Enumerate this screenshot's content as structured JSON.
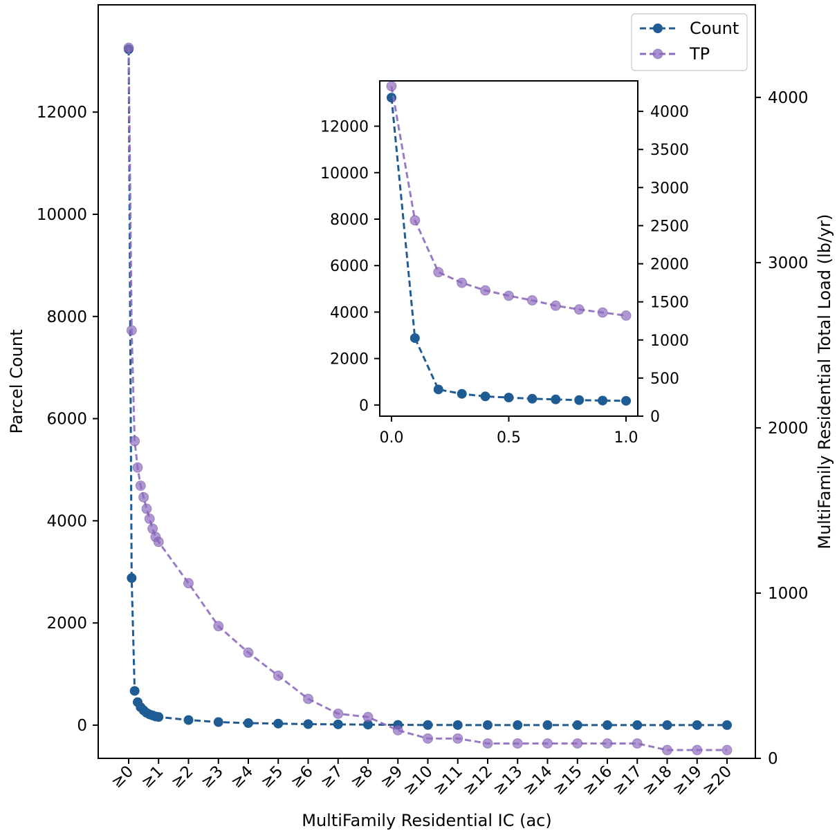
{
  "chart_data": [
    {
      "type": "line",
      "role": "main",
      "xlabel": "MultiFamily Residential IC (ac)",
      "ylabel": "Parcel Count",
      "y2label": "MultiFamily Residential Total Load (lb/yr)",
      "ylim": [
        -650,
        14100
      ],
      "y2lim": [
        0,
        4560
      ],
      "yticks": [
        0,
        2000,
        4000,
        6000,
        8000,
        10000,
        12000
      ],
      "y2ticks": [
        0,
        1000,
        2000,
        3000,
        4000
      ],
      "xtick_labels": [
        "≥0",
        "≥1",
        "≥2",
        "≥3",
        "≥4",
        "≥5",
        "≥6",
        "≥7",
        "≥8",
        "≥9",
        "≥10",
        "≥11",
        "≥12",
        "≥13",
        "≥14",
        "≥15",
        "≥16",
        "≥17",
        "≥18",
        "≥19",
        "≥20"
      ],
      "xtick_values": [
        0,
        1,
        2,
        3,
        4,
        5,
        6,
        7,
        8,
        9,
        10,
        11,
        12,
        13,
        14,
        15,
        16,
        17,
        18,
        19,
        20
      ],
      "legend": {
        "placement": "top-right",
        "entries": [
          "Count",
          "TP"
        ]
      },
      "series": [
        {
          "name": "Count",
          "axis": "left",
          "color": "#1f5c94",
          "x": [
            0,
            0.1,
            0.2,
            0.3,
            0.4,
            0.5,
            0.6,
            0.7,
            0.8,
            0.9,
            1,
            2,
            3,
            4,
            5,
            6,
            7,
            8,
            9,
            10,
            11,
            12,
            13,
            14,
            15,
            16,
            17,
            18,
            19,
            20
          ],
          "values": [
            13230,
            2880,
            670,
            450,
            350,
            290,
            240,
            210,
            190,
            170,
            160,
            100,
            60,
            40,
            30,
            20,
            15,
            10,
            5,
            3,
            2,
            2,
            1,
            1,
            1,
            1,
            1,
            1,
            1,
            1
          ]
        },
        {
          "name": "TP",
          "axis": "right",
          "color": "#8e6bbf",
          "x": [
            0,
            0.1,
            0.2,
            0.3,
            0.4,
            0.5,
            0.6,
            0.7,
            0.8,
            0.9,
            1,
            2,
            3,
            4,
            5,
            6,
            7,
            8,
            9,
            10,
            11,
            12,
            13,
            14,
            15,
            16,
            17,
            18,
            19,
            20
          ],
          "values": [
            4300,
            2590,
            1920,
            1760,
            1650,
            1580,
            1510,
            1450,
            1390,
            1340,
            1310,
            1060,
            800,
            640,
            500,
            360,
            270,
            250,
            170,
            120,
            120,
            90,
            90,
            90,
            90,
            90,
            90,
            50,
            50,
            50
          ]
        }
      ]
    },
    {
      "type": "line",
      "role": "inset",
      "xlim": [
        -0.05,
        1.05
      ],
      "ylim": [
        -480,
        13950
      ],
      "y2lim": [
        0,
        4400
      ],
      "xticks": [
        0.0,
        0.5,
        1.0
      ],
      "xtick_labels": [
        "0.0",
        "0.5",
        "1.0"
      ],
      "yticks": [
        0,
        2000,
        4000,
        6000,
        8000,
        10000,
        12000
      ],
      "y2ticks": [
        0,
        500,
        1000,
        1500,
        2000,
        2500,
        3000,
        3500,
        4000
      ],
      "series": [
        {
          "name": "Count",
          "axis": "left",
          "color": "#1f5c94",
          "x": [
            0,
            0.1,
            0.2,
            0.3,
            0.4,
            0.5,
            0.6,
            0.7,
            0.8,
            0.9,
            1.0
          ],
          "values": [
            13230,
            2880,
            670,
            480,
            370,
            320,
            270,
            240,
            210,
            190,
            180
          ]
        },
        {
          "name": "TP",
          "axis": "right",
          "color": "#8e6bbf",
          "x": [
            0,
            0.1,
            0.2,
            0.3,
            0.4,
            0.5,
            0.6,
            0.7,
            0.8,
            0.9,
            1.0
          ],
          "values": [
            4330,
            2570,
            1890,
            1750,
            1650,
            1580,
            1520,
            1450,
            1400,
            1360,
            1320
          ]
        }
      ]
    }
  ]
}
